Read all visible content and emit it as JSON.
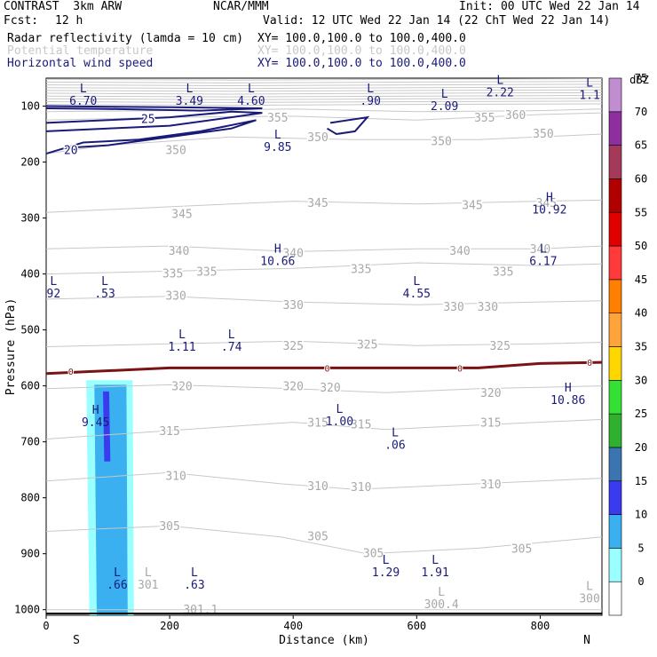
{
  "header": {
    "model": "CONTRAST  3km ARW",
    "center": "NCAR/MMM",
    "init": "Init: 00 UTC Wed 22 Jan 14",
    "fcst_label": "Fcst:",
    "fcst_value": "12 h",
    "valid": "Valid: 12 UTC Wed 22 Jan 14 (22 ChT Wed 22 Jan 14)",
    "fields": [
      {
        "name": "Radar reflectivity (lamda = 10 cm)",
        "xy": "XY= 100.0,100.0 to 100.0,400.0",
        "color": "#000000"
      },
      {
        "name": "Potential temperature",
        "xy": "XY= 100.0,100.0 to 100.0,400.0",
        "color": "#c8c8c8"
      },
      {
        "name": "Horizontal wind speed",
        "xy": "XY= 100.0,100.0 to 100.0,400.0",
        "color": "#1a1a7a"
      }
    ]
  },
  "chart_data": {
    "type": "cross-section",
    "xlabel": "Distance (km)",
    "ylabel": "Pressure (hPa)",
    "xlim": [
      0,
      900
    ],
    "ylim": [
      1010,
      50
    ],
    "x_ticks": [
      0,
      200,
      400,
      600,
      800
    ],
    "y_ticks": [
      100,
      200,
      300,
      400,
      500,
      600,
      700,
      800,
      900,
      1000
    ],
    "end_labels": {
      "left": "S",
      "right": "N"
    },
    "theta_contours": [
      {
        "label": "300",
        "pts": [
          [
            0,
            1000
          ],
          [
            900,
            1000
          ]
        ]
      },
      {
        "label": "305",
        "pts": [
          [
            0,
            860
          ],
          [
            200,
            850
          ],
          [
            380,
            870
          ],
          [
            520,
            900
          ],
          [
            700,
            890
          ],
          [
            900,
            870
          ]
        ]
      },
      {
        "label": "310",
        "pts": [
          [
            0,
            770
          ],
          [
            200,
            755
          ],
          [
            380,
            775
          ],
          [
            500,
            785
          ],
          [
            700,
            775
          ],
          [
            900,
            765
          ]
        ]
      },
      {
        "label": "315",
        "pts": [
          [
            0,
            695
          ],
          [
            200,
            680
          ],
          [
            400,
            665
          ],
          [
            550,
            678
          ],
          [
            700,
            670
          ],
          [
            900,
            660
          ]
        ]
      },
      {
        "label": "320",
        "pts": [
          [
            0,
            605
          ],
          [
            200,
            598
          ],
          [
            400,
            605
          ],
          [
            550,
            612
          ],
          [
            700,
            605
          ],
          [
            900,
            600
          ]
        ]
      },
      {
        "label": "325",
        "pts": [
          [
            0,
            530
          ],
          [
            200,
            525
          ],
          [
            400,
            520
          ],
          [
            600,
            528
          ],
          [
            800,
            525
          ],
          [
            900,
            522
          ]
        ]
      },
      {
        "label": "330",
        "pts": [
          [
            0,
            445
          ],
          [
            200,
            440
          ],
          [
            400,
            450
          ],
          [
            600,
            455
          ],
          [
            800,
            450
          ],
          [
            900,
            448
          ]
        ]
      },
      {
        "label": "335",
        "pts": [
          [
            0,
            400
          ],
          [
            200,
            395
          ],
          [
            400,
            390
          ],
          [
            600,
            380
          ],
          [
            800,
            385
          ],
          [
            900,
            382
          ]
        ]
      },
      {
        "label": "340",
        "pts": [
          [
            0,
            355
          ],
          [
            200,
            350
          ],
          [
            400,
            360
          ],
          [
            600,
            355
          ],
          [
            800,
            355
          ],
          [
            900,
            350
          ]
        ]
      },
      {
        "label": "345",
        "pts": [
          [
            0,
            290
          ],
          [
            200,
            280
          ],
          [
            400,
            270
          ],
          [
            600,
            275
          ],
          [
            800,
            270
          ],
          [
            900,
            268
          ]
        ]
      },
      {
        "label": "350",
        "pts": [
          [
            0,
            185
          ],
          [
            100,
            170
          ],
          [
            300,
            155
          ],
          [
            500,
            160
          ],
          [
            700,
            160
          ],
          [
            900,
            150
          ]
        ]
      },
      {
        "label": "355",
        "pts": [
          [
            0,
            125
          ],
          [
            200,
            120
          ],
          [
            400,
            118
          ],
          [
            600,
            125
          ],
          [
            800,
            115
          ],
          [
            900,
            112
          ]
        ]
      },
      {
        "label": "360",
        "pts": [
          [
            0,
            110
          ],
          [
            200,
            108
          ],
          [
            400,
            105
          ],
          [
            600,
            110
          ],
          [
            800,
            108
          ],
          [
            900,
            105
          ]
        ]
      }
    ],
    "theta_labels": [
      {
        "text": "350",
        "x": 210,
        "p": 178
      },
      {
        "text": "350",
        "x": 440,
        "p": 155
      },
      {
        "text": "350",
        "x": 640,
        "p": 162
      },
      {
        "text": "350",
        "x": 805,
        "p": 148
      },
      {
        "text": "355",
        "x": 375,
        "p": 120
      },
      {
        "text": "355",
        "x": 710,
        "p": 120
      },
      {
        "text": "360",
        "x": 760,
        "p": 115
      },
      {
        "text": "345",
        "x": 220,
        "p": 292
      },
      {
        "text": "345",
        "x": 440,
        "p": 272
      },
      {
        "text": "345",
        "x": 690,
        "p": 276
      },
      {
        "text": "345",
        "x": 810,
        "p": 272
      },
      {
        "text": "340",
        "x": 215,
        "p": 358
      },
      {
        "text": "340",
        "x": 400,
        "p": 362
      },
      {
        "text": "340",
        "x": 670,
        "p": 358
      },
      {
        "text": "340",
        "x": 800,
        "p": 355
      },
      {
        "text": "335",
        "x": 205,
        "p": 398
      },
      {
        "text": "335",
        "x": 260,
        "p": 395
      },
      {
        "text": "335",
        "x": 510,
        "p": 390
      },
      {
        "text": "335",
        "x": 740,
        "p": 395
      },
      {
        "text": "330",
        "x": 210,
        "p": 438
      },
      {
        "text": "330",
        "x": 400,
        "p": 455
      },
      {
        "text": "330",
        "x": 660,
        "p": 458
      },
      {
        "text": "330",
        "x": 715,
        "p": 458
      },
      {
        "text": "325",
        "x": 400,
        "p": 528
      },
      {
        "text": "325",
        "x": 520,
        "p": 525
      },
      {
        "text": "325",
        "x": 735,
        "p": 528
      },
      {
        "text": "320",
        "x": 220,
        "p": 600
      },
      {
        "text": "320",
        "x": 400,
        "p": 600
      },
      {
        "text": "320",
        "x": 460,
        "p": 602
      },
      {
        "text": "320",
        "x": 720,
        "p": 612
      },
      {
        "text": "315",
        "x": 200,
        "p": 680
      },
      {
        "text": "315",
        "x": 440,
        "p": 665
      },
      {
        "text": "315",
        "x": 510,
        "p": 668
      },
      {
        "text": "315",
        "x": 720,
        "p": 665
      },
      {
        "text": "310",
        "x": 210,
        "p": 760
      },
      {
        "text": "310",
        "x": 440,
        "p": 778
      },
      {
        "text": "310",
        "x": 510,
        "p": 780
      },
      {
        "text": "310",
        "x": 720,
        "p": 775
      },
      {
        "text": "305",
        "x": 200,
        "p": 850
      },
      {
        "text": "305",
        "x": 440,
        "p": 868
      },
      {
        "text": "305",
        "x": 530,
        "p": 898
      },
      {
        "text": "305",
        "x": 770,
        "p": 890
      }
    ],
    "wind_contours": [
      {
        "label": "25",
        "pts": [
          [
            0,
            130
          ],
          [
            100,
            125
          ],
          [
            200,
            120
          ],
          [
            300,
            110
          ],
          [
            350,
            112
          ],
          [
            300,
            120
          ],
          [
            200,
            135
          ],
          [
            100,
            140
          ],
          [
            0,
            145
          ]
        ]
      },
      {
        "label": "20",
        "pts": [
          [
            0,
            185
          ],
          [
            60,
            165
          ],
          [
            150,
            160
          ],
          [
            250,
            145
          ],
          [
            340,
            125
          ],
          [
            300,
            140
          ],
          [
            200,
            155
          ],
          [
            100,
            170
          ],
          [
            30,
            175
          ]
        ]
      },
      {
        "label": "",
        "pts": [
          [
            0,
            100
          ],
          [
            200,
            102
          ],
          [
            350,
            104
          ],
          [
            250,
            108
          ],
          [
            100,
            105
          ],
          [
            0,
            104
          ]
        ]
      },
      {
        "label": "",
        "pts": [
          [
            460,
            130
          ],
          [
            520,
            120
          ],
          [
            500,
            145
          ],
          [
            470,
            150
          ],
          [
            455,
            140
          ]
        ]
      }
    ],
    "wind_labels": [
      {
        "text": "25",
        "x": 165,
        "p": 122
      },
      {
        "text": "20",
        "x": 40,
        "p": 178
      }
    ],
    "freezing_level": {
      "label": "0",
      "pts": [
        [
          0,
          578
        ],
        [
          200,
          568
        ],
        [
          400,
          568
        ],
        [
          600,
          568
        ],
        [
          700,
          568
        ],
        [
          800,
          560
        ],
        [
          900,
          558
        ]
      ],
      "marks": [
        [
          40,
          574
        ],
        [
          455,
          568
        ],
        [
          670,
          568
        ],
        [
          880,
          558
        ]
      ]
    },
    "hl_markers": [
      {
        "sym": "L",
        "value": "6.70",
        "x": 60,
        "p": 75
      },
      {
        "sym": "L",
        "value": "3.49",
        "x": 232,
        "p": 75
      },
      {
        "sym": "L",
        "value": "4.60",
        "x": 332,
        "p": 75
      },
      {
        "sym": "L",
        "value": ".90",
        "x": 525,
        "p": 75
      },
      {
        "sym": "L",
        "value": "2.09",
        "x": 645,
        "p": 85
      },
      {
        "sym": "L",
        "value": "2.22",
        "x": 735,
        "p": 60
      },
      {
        "sym": "L",
        "value": "1.1",
        "x": 880,
        "p": 65
      },
      {
        "sym": "L",
        "value": "9.85",
        "x": 375,
        "p": 158
      },
      {
        "sym": "H",
        "value": "10.92",
        "x": 815,
        "p": 270
      },
      {
        "sym": "H",
        "value": "10.66",
        "x": 375,
        "p": 362
      },
      {
        "sym": "L",
        "value": "6.17",
        "x": 805,
        "p": 362
      },
      {
        "sym": "L",
        "value": "92",
        "x": 12,
        "p": 420
      },
      {
        "sym": "L",
        "value": ".53",
        "x": 95,
        "p": 420
      },
      {
        "sym": "L",
        "value": "4.55",
        "x": 600,
        "p": 420
      },
      {
        "sym": "L",
        "value": "1.11",
        "x": 220,
        "p": 515
      },
      {
        "sym": "L",
        "value": ".74",
        "x": 300,
        "p": 515
      },
      {
        "sym": "H",
        "value": "10.86",
        "x": 845,
        "p": 610
      },
      {
        "sym": "H",
        "value": "9.45",
        "x": 80,
        "p": 650
      },
      {
        "sym": "L",
        "value": "1.00",
        "x": 475,
        "p": 648
      },
      {
        "sym": "L",
        "value": ".06",
        "x": 565,
        "p": 690
      },
      {
        "sym": "L",
        "value": "1.29",
        "x": 550,
        "p": 918
      },
      {
        "sym": "L",
        "value": "1.91",
        "x": 630,
        "p": 918
      },
      {
        "sym": "L",
        "value": ".66",
        "x": 115,
        "p": 940
      },
      {
        "sym": "L",
        "value": ".63",
        "x": 240,
        "p": 940
      }
    ],
    "gray_markers": [
      {
        "sym": "L",
        "value": "301",
        "x": 165,
        "p": 940
      },
      {
        "sym": "",
        "value": "301.1",
        "x": 250,
        "p": 985
      },
      {
        "sym": "L",
        "value": "300.4",
        "x": 640,
        "p": 975
      },
      {
        "sym": "L",
        "value": "300",
        "x": 880,
        "p": 965
      }
    ],
    "reflectivity_cells": [
      {
        "dbz": 5,
        "pts": [
          [
            65,
            590
          ],
          [
            140,
            590
          ],
          [
            142,
            1010
          ],
          [
            70,
            1010
          ]
        ]
      },
      {
        "dbz": 10,
        "pts": [
          [
            78,
            598
          ],
          [
            130,
            598
          ],
          [
            132,
            1010
          ],
          [
            82,
            1010
          ]
        ]
      },
      {
        "dbz": 15,
        "pts": [
          [
            92,
            610
          ],
          [
            102,
            610
          ],
          [
            104,
            735
          ],
          [
            94,
            735
          ]
        ]
      }
    ],
    "colorbar": {
      "unit": "dBZ",
      "levels": [
        "0",
        "5",
        "10",
        "15",
        "20",
        "25",
        "30",
        "35",
        "40",
        "45",
        "50",
        "55",
        "60",
        "65",
        "70",
        "75"
      ],
      "colors": [
        "#ffffff",
        "#99ffff",
        "#3ab0f0",
        "#3a3aee",
        "#3a75b0",
        "#2fb02f",
        "#34e034",
        "#ffd700",
        "#ffa43a",
        "#ff7f00",
        "#ff3a3a",
        "#e00000",
        "#b00000",
        "#a33a5a",
        "#8e2fa0",
        "#c08ed0"
      ]
    }
  }
}
